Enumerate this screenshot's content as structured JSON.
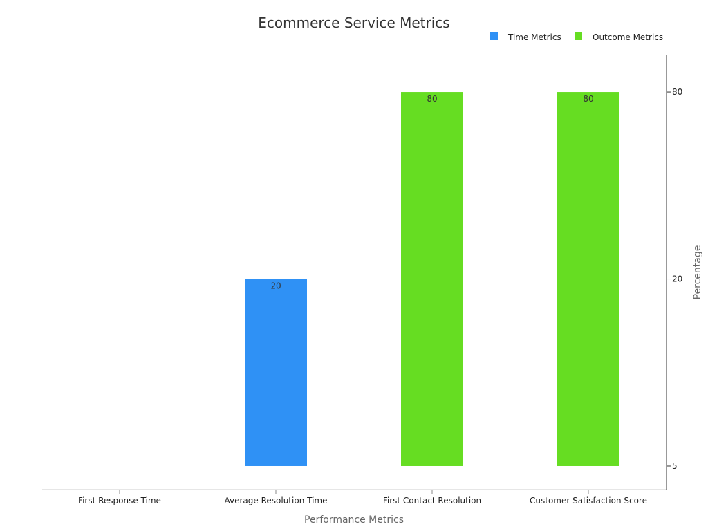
{
  "chart_data": {
    "type": "bar",
    "title": "Ecommerce Service Metrics",
    "xlabel": "Performance Metrics",
    "ylabel": "Percentage",
    "y_axis_position": "right",
    "y_ticks": [
      5,
      20,
      80
    ],
    "y_scale": "log",
    "ylim": [
      4.2,
      105
    ],
    "grid": false,
    "legend_position": "top-right",
    "categories": [
      "First Response Time",
      "Average Resolution Time",
      "First Contact Resolution",
      "Customer Satisfaction Score"
    ],
    "series": [
      {
        "name": "Time Metrics",
        "color": "#2f91f5",
        "values": [
          null,
          20,
          null,
          null
        ]
      },
      {
        "name": "Outcome Metrics",
        "color": "#66dd22",
        "values": [
          null,
          null,
          80,
          80
        ]
      }
    ],
    "data_labels": [
      "",
      "20",
      "80",
      "80"
    ]
  }
}
